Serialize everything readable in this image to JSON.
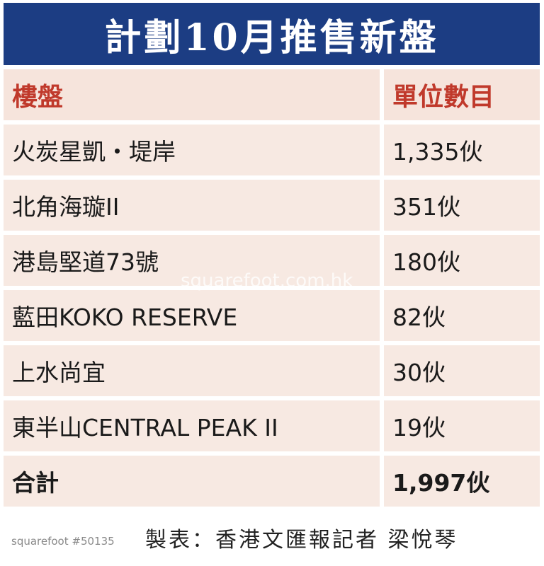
{
  "title": "計劃10月推售新盤",
  "columns": [
    "樓盤",
    "單位數目"
  ],
  "rows": [
    {
      "name": "火炭星凱・堤岸",
      "units": "1,335伙"
    },
    {
      "name": "北角海璇II",
      "units": "351伙"
    },
    {
      "name": "港島堅道73號",
      "units": "180伙"
    },
    {
      "name": "藍田KOKO RESERVE",
      "units": "82伙"
    },
    {
      "name": "上水尚宜",
      "units": "30伙"
    },
    {
      "name": "東半山CENTRAL PEAK II",
      "units": "19伙"
    }
  ],
  "total": {
    "name": "合計",
    "units": "1,997伙"
  },
  "credit": "製表：香港文匯報記者 梁悅琴",
  "watermark": "squarefoot #50135",
  "background_watermark": "squarefoot.com.hk",
  "colors": {
    "title_bar": "#1c3d83",
    "header_text": "#c0392b",
    "cell_bg": "#f7e9e2"
  }
}
